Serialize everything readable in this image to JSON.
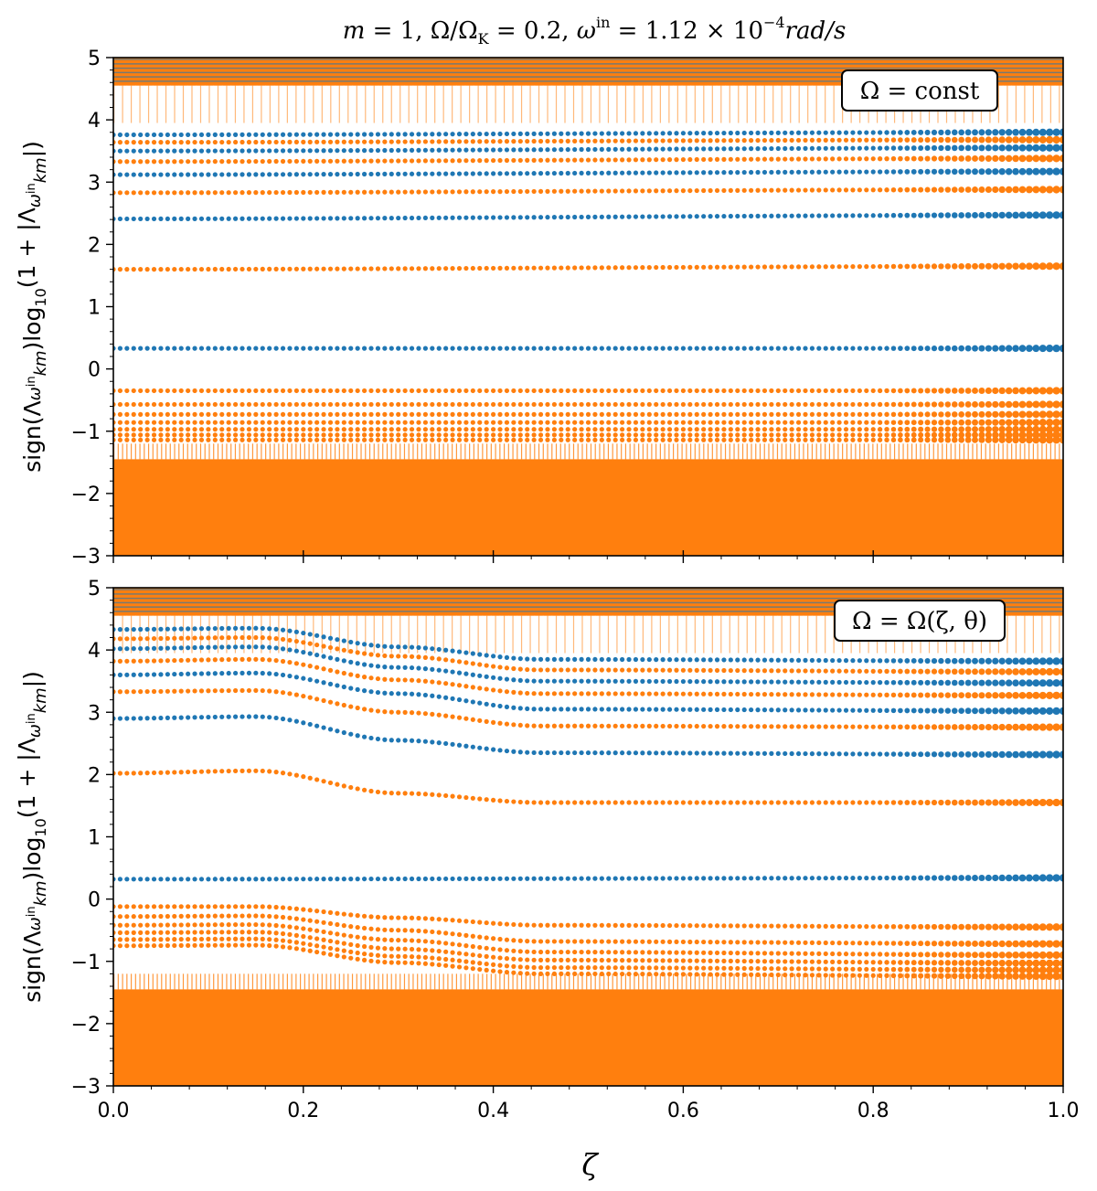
{
  "figure": {
    "title_parts": {
      "m": "m",
      "eq1": " = 1,  ",
      "omega_ratio": "Ω/Ω",
      "K": "K",
      "eq2": " = 0.2,  ",
      "omega": "ω",
      "in": "in",
      "eq3": " = 1.12 × 10",
      "exp": "−4",
      "unit": "rad/s"
    },
    "xlabel": "ζ",
    "ylabel_parts": {
      "pre": "sign(Λ",
      "w": "ω",
      "in": "in",
      "km": "km",
      "mid": ")log",
      "ten": "10",
      "post1": "(1 + |Λ",
      "post2": "|)"
    }
  },
  "colors": {
    "positive": "#1f77b4",
    "negative": "#ff7f0e",
    "axis": "#000000"
  },
  "chart_data": [
    {
      "type": "scatter",
      "panel": "top",
      "annotation": "Ω = const",
      "xlim": [
        0.0,
        1.0
      ],
      "ylim": [
        -3,
        5
      ],
      "xticks": [
        "0.0",
        "0.2",
        "0.4",
        "0.6",
        "0.8",
        "1.0"
      ],
      "yticks": [
        "−3",
        "−2",
        "−1",
        "0",
        "1",
        "2",
        "3",
        "4",
        "5"
      ],
      "series": [
        {
          "color": "positive",
          "x": [
            0.0,
            1.0
          ],
          "y": [
            0.33,
            0.33
          ]
        },
        {
          "color": "negative",
          "x": [
            0.0,
            1.0
          ],
          "y": [
            1.6,
            1.65
          ]
        },
        {
          "color": "positive",
          "x": [
            0.0,
            1.0
          ],
          "y": [
            2.41,
            2.47
          ]
        },
        {
          "color": "negative",
          "x": [
            0.0,
            1.0
          ],
          "y": [
            2.83,
            2.88
          ]
        },
        {
          "color": "positive",
          "x": [
            0.0,
            1.0
          ],
          "y": [
            3.12,
            3.17
          ]
        },
        {
          "color": "negative",
          "x": [
            0.0,
            1.0
          ],
          "y": [
            3.33,
            3.38
          ]
        },
        {
          "color": "positive",
          "x": [
            0.0,
            1.0
          ],
          "y": [
            3.5,
            3.55
          ]
        },
        {
          "color": "negative",
          "x": [
            0.0,
            1.0
          ],
          "y": [
            3.64,
            3.68
          ]
        },
        {
          "color": "positive",
          "x": [
            0.0,
            1.0
          ],
          "y": [
            3.76,
            3.8
          ]
        },
        {
          "color": "negative",
          "x": [
            0.0,
            1.0
          ],
          "y": [
            -0.35,
            -0.35
          ]
        },
        {
          "color": "negative",
          "x": [
            0.0,
            1.0
          ],
          "y": [
            -0.57,
            -0.57
          ]
        },
        {
          "color": "negative",
          "x": [
            0.0,
            1.0
          ],
          "y": [
            -0.73,
            -0.73
          ]
        },
        {
          "color": "negative",
          "x": [
            0.0,
            1.0
          ],
          "y": [
            -0.86,
            -0.86
          ]
        },
        {
          "color": "negative",
          "x": [
            0.0,
            1.0
          ],
          "y": [
            -0.97,
            -0.97
          ]
        },
        {
          "color": "negative",
          "x": [
            0.0,
            1.0
          ],
          "y": [
            -1.06,
            -1.06
          ]
        },
        {
          "color": "negative",
          "x": [
            0.0,
            1.0
          ],
          "y": [
            -1.14,
            -1.14
          ]
        }
      ]
    },
    {
      "type": "scatter",
      "panel": "bottom",
      "annotation": "Ω = Ω(ζ, θ)",
      "xlim": [
        0.0,
        1.0
      ],
      "ylim": [
        -3,
        5
      ],
      "xticks": [
        "0.0",
        "0.2",
        "0.4",
        "0.6",
        "0.8",
        "1.0"
      ],
      "yticks": [
        "−3",
        "−2",
        "−1",
        "0",
        "1",
        "2",
        "3",
        "4",
        "5"
      ],
      "series": [
        {
          "color": "positive",
          "x": [
            0.0,
            1.0
          ],
          "y": [
            0.32,
            0.34
          ]
        },
        {
          "color": "negative",
          "x": [
            0.0,
            0.15,
            0.3,
            0.45,
            1.0
          ],
          "y": [
            2.02,
            2.06,
            1.7,
            1.55,
            1.55
          ]
        },
        {
          "color": "positive",
          "x": [
            0.0,
            0.15,
            0.3,
            0.45,
            1.0
          ],
          "y": [
            2.9,
            2.93,
            2.55,
            2.35,
            2.32
          ]
        },
        {
          "color": "negative",
          "x": [
            0.0,
            0.15,
            0.3,
            0.45,
            1.0
          ],
          "y": [
            3.33,
            3.35,
            3.0,
            2.78,
            2.76
          ]
        },
        {
          "color": "positive",
          "x": [
            0.0,
            0.15,
            0.3,
            0.45,
            1.0
          ],
          "y": [
            3.6,
            3.63,
            3.3,
            3.05,
            3.02
          ]
        },
        {
          "color": "negative",
          "x": [
            0.0,
            0.15,
            0.3,
            0.45,
            1.0
          ],
          "y": [
            3.82,
            3.85,
            3.52,
            3.3,
            3.27
          ]
        },
        {
          "color": "positive",
          "x": [
            0.0,
            0.15,
            0.3,
            0.45,
            1.0
          ],
          "y": [
            4.02,
            4.05,
            3.72,
            3.5,
            3.47
          ]
        },
        {
          "color": "negative",
          "x": [
            0.0,
            0.15,
            0.3,
            0.45,
            1.0
          ],
          "y": [
            4.18,
            4.2,
            3.9,
            3.68,
            3.65
          ]
        },
        {
          "color": "positive",
          "x": [
            0.0,
            0.15,
            0.3,
            0.45,
            1.0
          ],
          "y": [
            4.33,
            4.35,
            4.05,
            3.85,
            3.82
          ]
        },
        {
          "color": "negative",
          "x": [
            0.0,
            0.15,
            0.3,
            0.45,
            1.0
          ],
          "y": [
            -0.12,
            -0.12,
            -0.3,
            -0.42,
            -0.45
          ]
        },
        {
          "color": "negative",
          "x": [
            0.0,
            0.15,
            0.3,
            0.45,
            1.0
          ],
          "y": [
            -0.28,
            -0.27,
            -0.5,
            -0.68,
            -0.72
          ]
        },
        {
          "color": "negative",
          "x": [
            0.0,
            0.15,
            0.3,
            0.45,
            1.0
          ],
          "y": [
            -0.42,
            -0.41,
            -0.66,
            -0.85,
            -0.9
          ]
        },
        {
          "color": "negative",
          "x": [
            0.0,
            0.15,
            0.3,
            0.45,
            1.0
          ],
          "y": [
            -0.54,
            -0.53,
            -0.8,
            -0.98,
            -1.03
          ]
        },
        {
          "color": "negative",
          "x": [
            0.0,
            0.15,
            0.3,
            0.45,
            1.0
          ],
          "y": [
            -0.65,
            -0.64,
            -0.92,
            -1.1,
            -1.14
          ]
        },
        {
          "color": "negative",
          "x": [
            0.0,
            0.15,
            0.3,
            0.45,
            1.0
          ],
          "y": [
            -0.75,
            -0.74,
            -1.02,
            -1.2,
            -1.24
          ]
        }
      ]
    }
  ]
}
